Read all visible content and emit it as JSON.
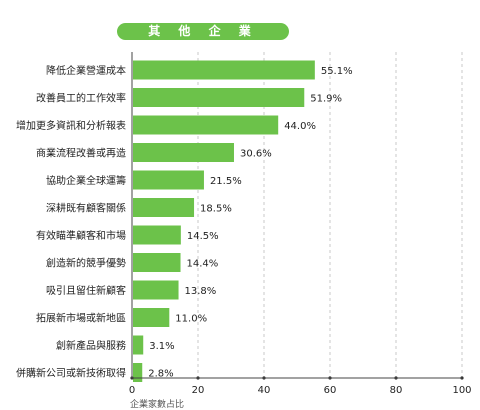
{
  "chart_data": {
    "type": "bar",
    "orientation": "horizontal",
    "title": "其 他 企 業",
    "xlabel": "企業家數占比",
    "xlim": [
      0,
      100
    ],
    "xticks": [
      0,
      20,
      40,
      60,
      80,
      100
    ],
    "grid": true,
    "categories": [
      "降低企業營運成本",
      "改善員工的工作效率",
      "增加更多資訊和分析報表",
      "商業流程改善或再造",
      "協助企業全球運籌",
      "深耕既有顧客關係",
      "有效瞄準顧客和市場",
      "創造新的競爭優勢",
      "吸引且留住新顧客",
      "拓展新市場或新地區",
      "創新產品與服務",
      "併購新公司或新技術取得"
    ],
    "values": [
      55.1,
      51.9,
      44.0,
      30.6,
      21.5,
      18.5,
      14.5,
      14.4,
      13.8,
      11.0,
      3.1,
      2.8
    ],
    "data_labels": [
      "55.1%",
      "51.9%",
      "44.0%",
      "30.6%",
      "21.5%",
      "18.5%",
      "14.5%",
      "14.4%",
      "13.8%",
      "11.0%",
      "3.1%",
      "2.8%"
    ],
    "colors": {
      "bar": "#6cc24a",
      "title_bg": "#6cc24a",
      "grid": "#bbbbbb"
    }
  }
}
